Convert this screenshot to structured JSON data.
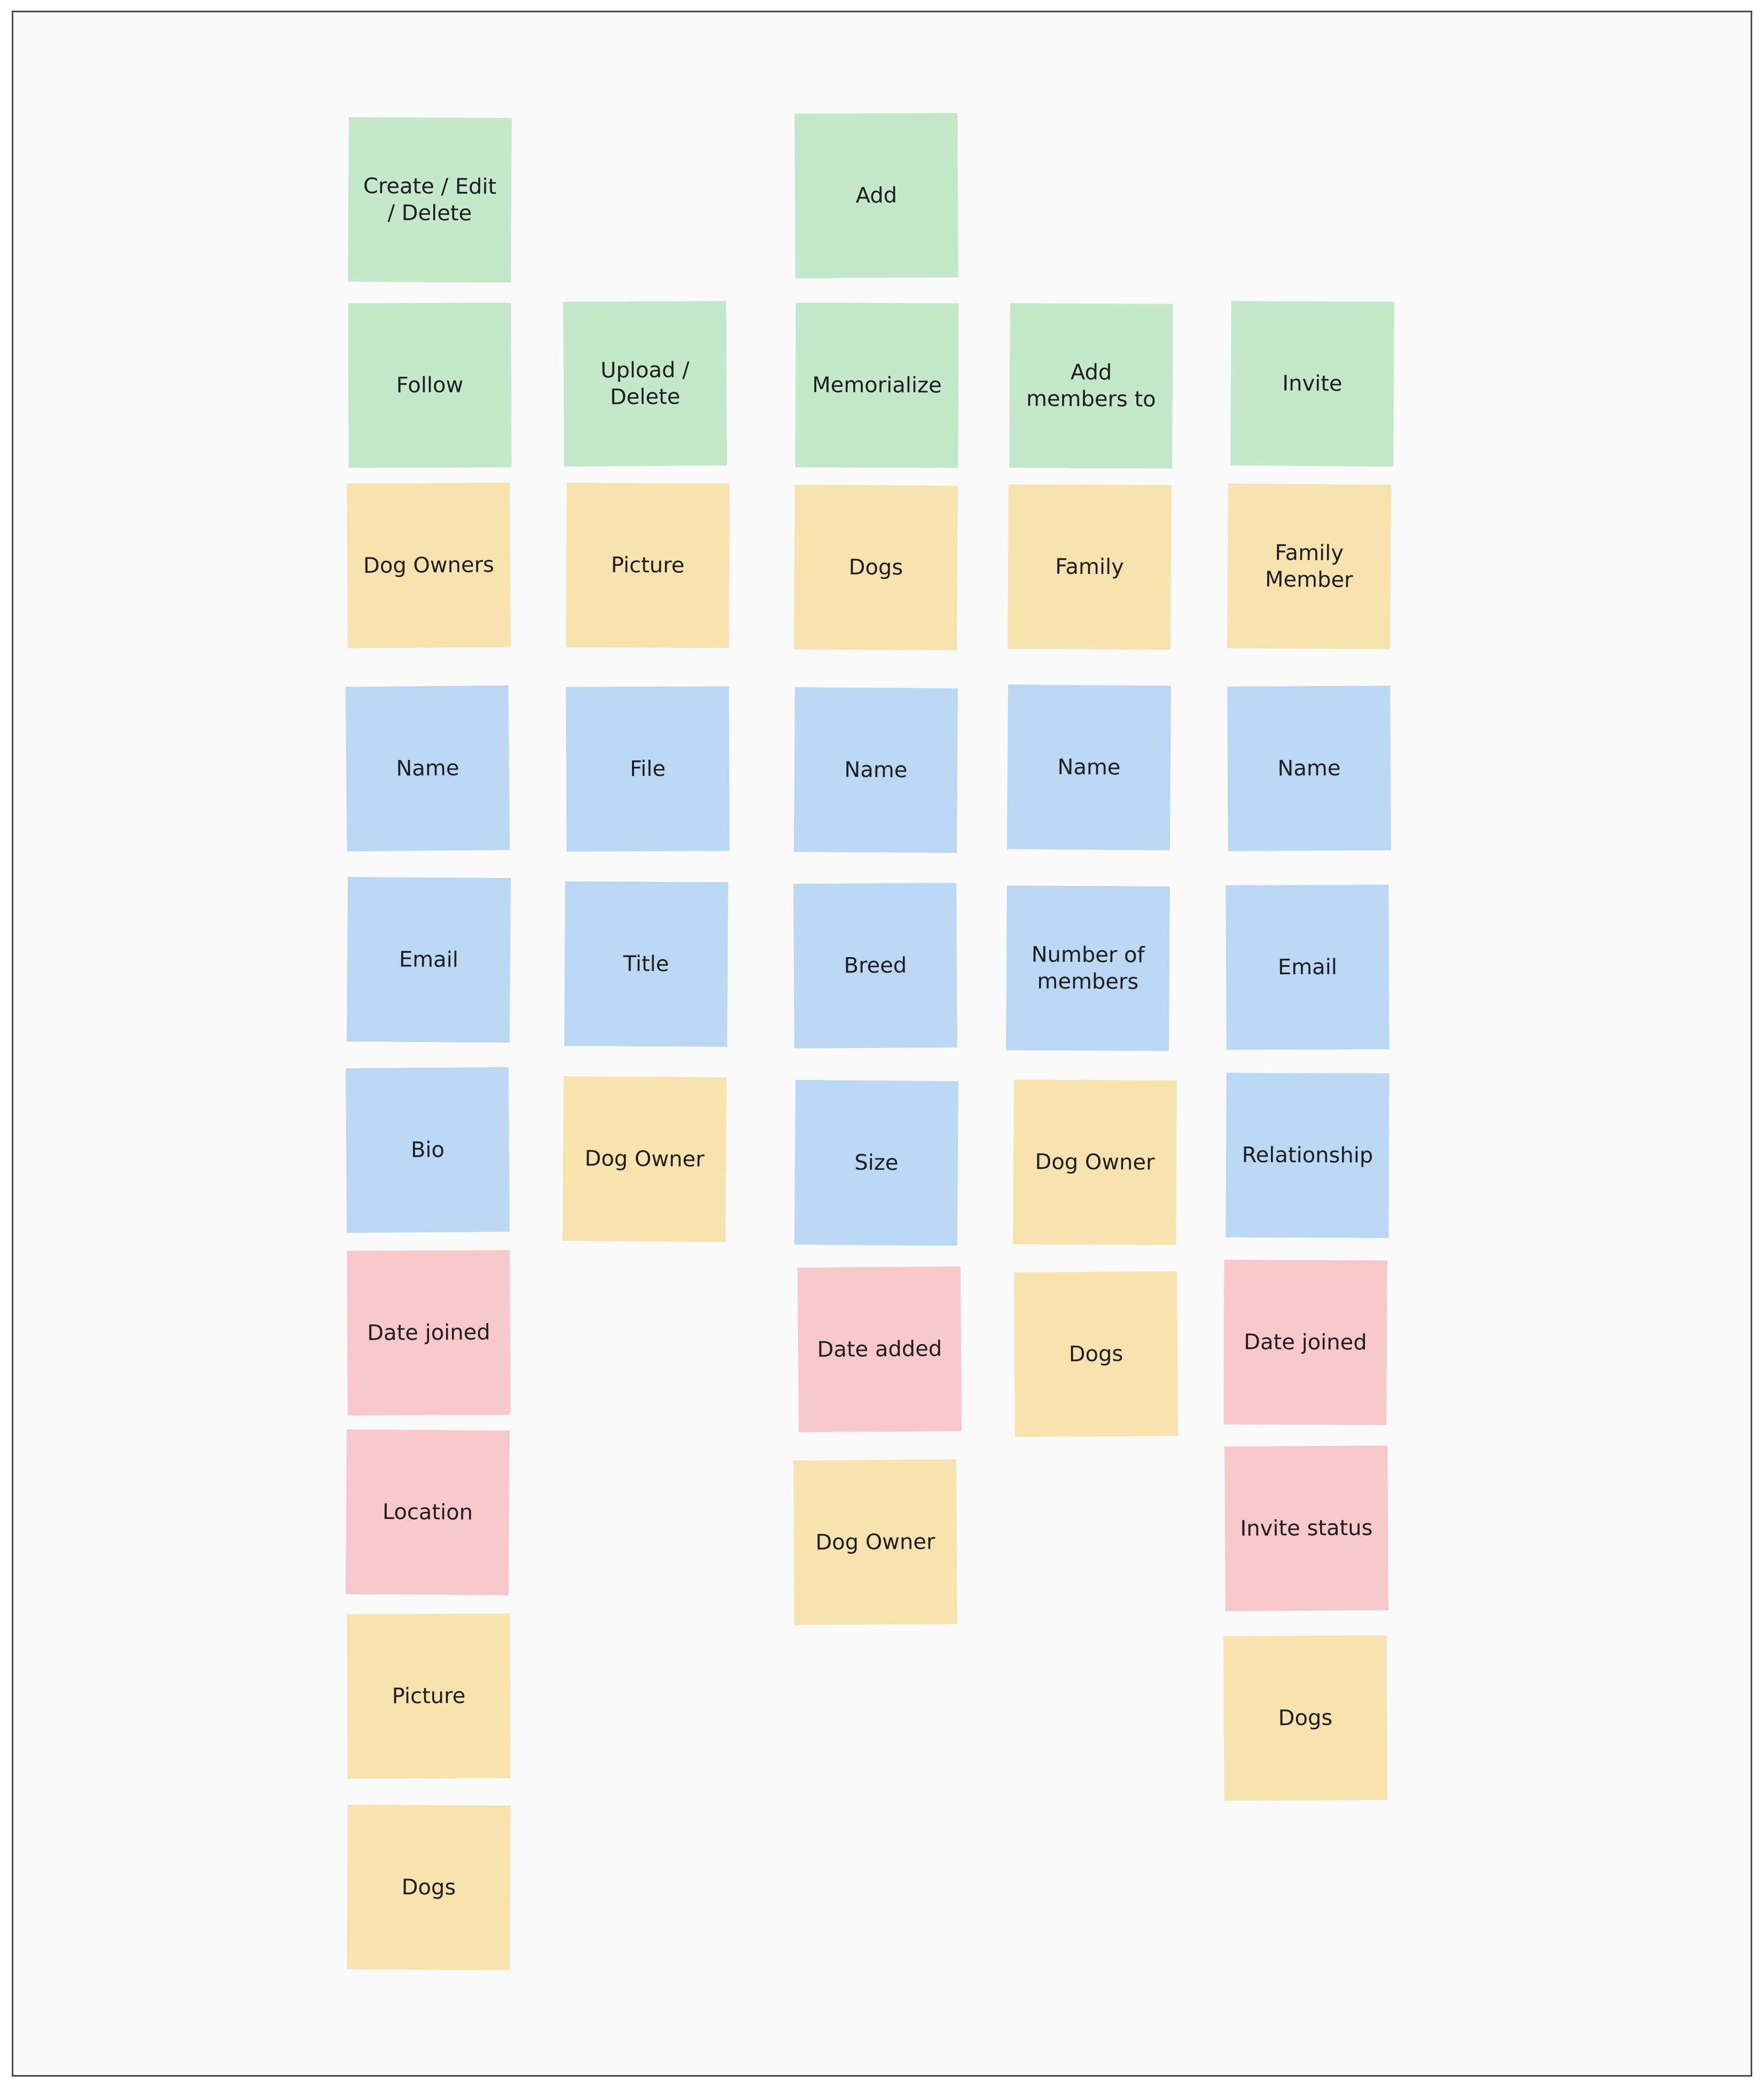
{
  "colors": {
    "action": "#c4e8ca",
    "entity": "#f8e3af",
    "attribute": "#bad8f4",
    "metadata": "#f8c8ca",
    "background": "#fafafa",
    "border": "#4a4a4a"
  },
  "columns": [
    {
      "notes": [
        {
          "text": "Create / Edit / Delete",
          "color": "green"
        },
        {
          "text": "Follow",
          "color": "green"
        },
        {
          "text": "Dog Owners",
          "color": "yellow"
        },
        {
          "text": "Name",
          "color": "blue"
        },
        {
          "text": "Email",
          "color": "blue"
        },
        {
          "text": "Bio",
          "color": "blue"
        },
        {
          "text": "Date joined",
          "color": "pink"
        },
        {
          "text": "Location",
          "color": "pink"
        },
        {
          "text": "Picture",
          "color": "yellow"
        },
        {
          "text": "Dogs",
          "color": "yellow"
        }
      ]
    },
    {
      "notes": [
        {
          "text": "Upload / Delete",
          "color": "green"
        },
        {
          "text": "Picture",
          "color": "yellow"
        },
        {
          "text": "File",
          "color": "blue"
        },
        {
          "text": "Title",
          "color": "blue"
        },
        {
          "text": "Dog Owner",
          "color": "yellow"
        }
      ]
    },
    {
      "notes": [
        {
          "text": "Add",
          "color": "green"
        },
        {
          "text": "Memorialize",
          "color": "green"
        },
        {
          "text": "Dogs",
          "color": "yellow"
        },
        {
          "text": "Name",
          "color": "blue"
        },
        {
          "text": "Breed",
          "color": "blue"
        },
        {
          "text": "Size",
          "color": "blue"
        },
        {
          "text": "Date added",
          "color": "pink"
        },
        {
          "text": "Dog Owner",
          "color": "yellow"
        }
      ]
    },
    {
      "notes": [
        {
          "text": "Add members to",
          "color": "green"
        },
        {
          "text": "Family",
          "color": "yellow"
        },
        {
          "text": "Name",
          "color": "blue"
        },
        {
          "text": "Number of members",
          "color": "blue"
        },
        {
          "text": "Dog Owner",
          "color": "yellow"
        },
        {
          "text": "Dogs",
          "color": "yellow"
        }
      ]
    },
    {
      "notes": [
        {
          "text": "Invite",
          "color": "green"
        },
        {
          "text": "Family Member",
          "color": "yellow"
        },
        {
          "text": "Name",
          "color": "blue"
        },
        {
          "text": "Email",
          "color": "blue"
        },
        {
          "text": "Relationship",
          "color": "blue"
        },
        {
          "text": "Date joined",
          "color": "pink"
        },
        {
          "text": "Invite status",
          "color": "pink"
        },
        {
          "text": "Dogs",
          "color": "yellow"
        }
      ]
    }
  ]
}
